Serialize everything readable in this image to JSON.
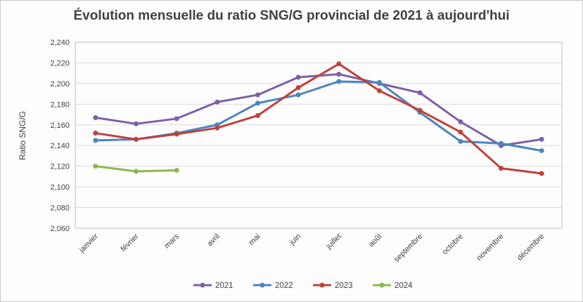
{
  "chart_data": {
    "type": "line",
    "title": "Évolution mensuelle du ratio SNG/G provincial de 2021 à aujourd'hui",
    "xlabel": "",
    "ylabel": "Ratio SNG/G",
    "ylim": [
      2.06,
      2.24
    ],
    "yticks": [
      2.06,
      2.08,
      2.1,
      2.12,
      2.14,
      2.16,
      2.18,
      2.2,
      2.22,
      2.24
    ],
    "ytick_labels": [
      "2,060",
      "2,080",
      "2,100",
      "2,120",
      "2,140",
      "2,160",
      "2,180",
      "2,200",
      "2,220",
      "2,240"
    ],
    "grid": "horizontal",
    "legend_position": "bottom",
    "categories": [
      "janvier",
      "février",
      "mars",
      "avril",
      "mai",
      "juin",
      "juillet",
      "août",
      "septembre",
      "octobre",
      "novembre",
      "décembre"
    ],
    "series": [
      {
        "name": "2021",
        "color": "#7f5fa7",
        "values": [
          2.167,
          2.161,
          2.166,
          2.182,
          2.189,
          2.206,
          2.209,
          2.2,
          2.191,
          2.163,
          2.14,
          2.146
        ]
      },
      {
        "name": "2022",
        "color": "#4a86c0",
        "values": [
          2.145,
          2.146,
          2.152,
          2.16,
          2.181,
          2.189,
          2.202,
          2.201,
          2.172,
          2.144,
          2.142,
          2.135
        ]
      },
      {
        "name": "2023",
        "color": "#c0413b",
        "values": [
          2.152,
          2.146,
          2.151,
          2.157,
          2.169,
          2.196,
          2.219,
          2.193,
          2.174,
          2.153,
          2.118,
          2.113
        ]
      },
      {
        "name": "2024",
        "color": "#8fb84a",
        "values": [
          2.12,
          2.115,
          2.116,
          null,
          null,
          null,
          null,
          null,
          null,
          null,
          null,
          null
        ]
      }
    ]
  }
}
